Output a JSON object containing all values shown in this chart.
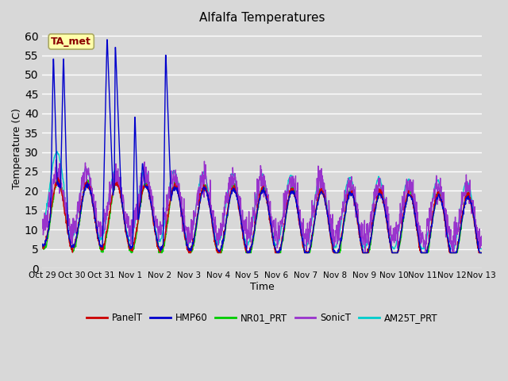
{
  "title": "Alfalfa Temperatures",
  "xlabel": "Time",
  "ylabel": "Temperature (C)",
  "ylim": [
    0,
    62
  ],
  "yticks": [
    0,
    5,
    10,
    15,
    20,
    25,
    30,
    35,
    40,
    45,
    50,
    55,
    60
  ],
  "fig_bg_color": "#d8d8d8",
  "plot_bg_color": "#d8d8d8",
  "annotation_text": "TA_met",
  "annotation_color": "#8b0000",
  "annotation_bg": "#ffffaa",
  "series": {
    "PanelT": {
      "color": "#cc0000",
      "lw": 1.0
    },
    "HMP60": {
      "color": "#0000cc",
      "lw": 1.0
    },
    "NR01_PRT": {
      "color": "#00cc00",
      "lw": 1.0
    },
    "SonicT": {
      "color": "#9933cc",
      "lw": 1.0
    },
    "AM25T_PRT": {
      "color": "#00cccc",
      "lw": 1.0
    }
  },
  "xtick_labels": [
    "Oct 29",
    "Oct 30",
    "Oct 31",
    "Nov 1",
    "Nov 2",
    "Nov 3",
    "Nov 4",
    "Nov 5",
    "Nov 6",
    "Nov 7",
    "Nov 8",
    "Nov 9",
    "Nov 10",
    "Nov 11",
    "Nov 12",
    "Nov 13"
  ],
  "n_points": 1440
}
